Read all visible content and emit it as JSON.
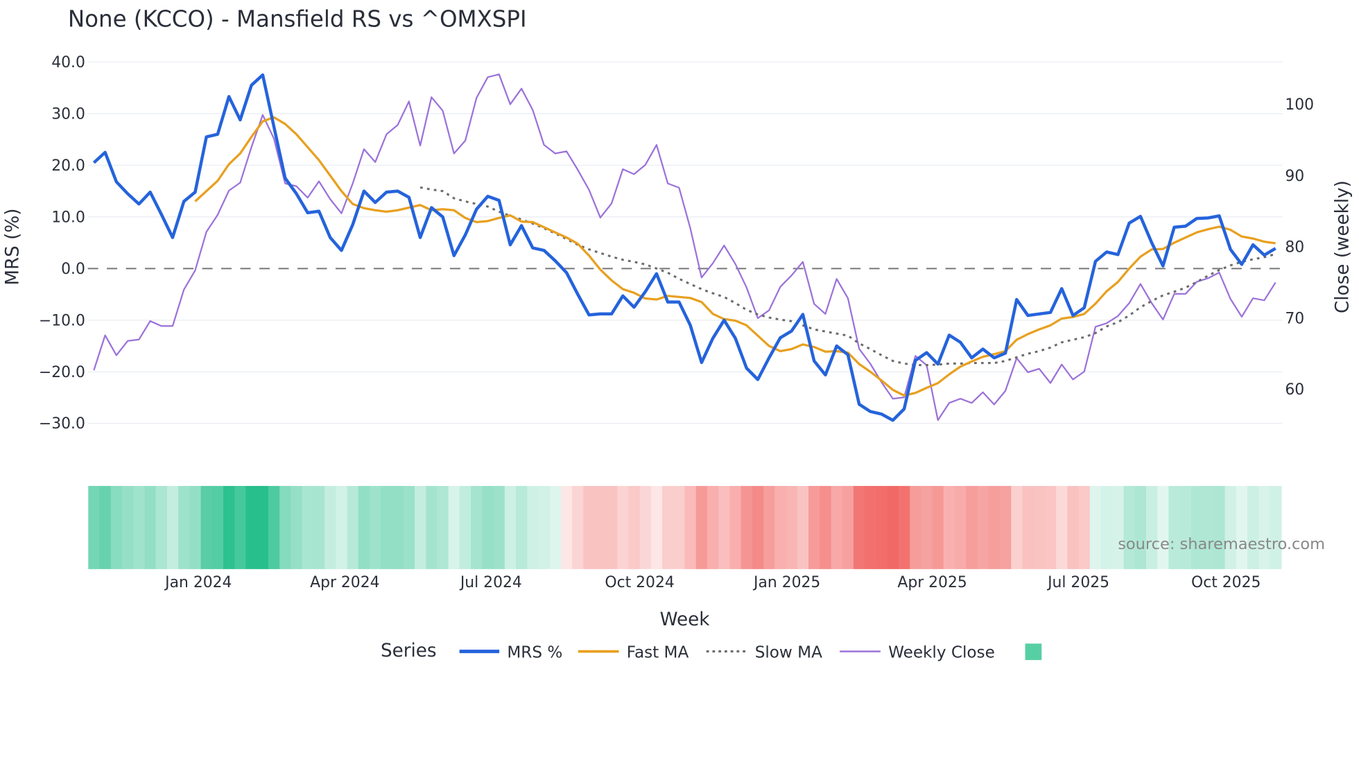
{
  "chart_data": {
    "type": "line",
    "title": "None (KCCO) - Mansfield RS vs ^OMXSPI",
    "xlabel": "Week",
    "ylabel": "MRS (%)",
    "y2label": "Close (weekly)",
    "ylim": [
      -37,
      42
    ],
    "y2lim": [
      52,
      111
    ],
    "yticks": [
      "40.0",
      "30.0",
      "20.0",
      "10.0",
      "0.0",
      "−10.0",
      "−20.0",
      "−30.0"
    ],
    "ytick_values": [
      40,
      30,
      20,
      10,
      0,
      -10,
      -20,
      -30
    ],
    "y2ticks": [
      "100",
      "90",
      "80",
      "70",
      "60"
    ],
    "y2tick_values": [
      100,
      90,
      80,
      70,
      60
    ],
    "xticks": [
      "Jan 2024",
      "Apr 2024",
      "Jul 2024",
      "Oct 2024",
      "Jan 2025",
      "Apr 2025",
      "Jul 2025",
      "Oct 2025"
    ],
    "xtick_weeks": [
      9.3,
      22.3,
      35.3,
      48.5,
      61.6,
      74.5,
      87.5,
      100.6
    ],
    "grid": true,
    "zero_line": true,
    "legend": {
      "title": "Series",
      "position": "bottom"
    },
    "series": [
      {
        "name": "MRS %",
        "axis": "left",
        "color": "#2563db",
        "style": "solid",
        "values": [
          20.5,
          22.5,
          16.8,
          14.5,
          12.5,
          14.8,
          10.5,
          6,
          13,
          14.8,
          25.5,
          26,
          33.3,
          28.8,
          35.5,
          37.5,
          27.5,
          17.5,
          14.5,
          10.8,
          11.1,
          6,
          3.5,
          8.5,
          15,
          12.8,
          14.8,
          15,
          13.8,
          6,
          11.8,
          10,
          2.5,
          6.5,
          11.5,
          14,
          13.2,
          4.6,
          8.3,
          4,
          3.5,
          1.5,
          -0.8,
          -5,
          -9,
          -8.8,
          -8.8,
          -5.3,
          -7.5,
          -4.5,
          -1,
          -6.5,
          -6.5,
          -11,
          -18.2,
          -13.5,
          -10,
          -13.5,
          -19.3,
          -21.5,
          -17.3,
          -13.4,
          -12.1,
          -8.9,
          -17.9,
          -20.6,
          -15,
          -16.7,
          -26.3,
          -27.7,
          -28.2,
          -29.4,
          -27.2,
          -17.8,
          -16.3,
          -18.5,
          -12.9,
          -14.3,
          -17.3,
          -15.6,
          -17.3,
          -16.4,
          -6,
          -9.1,
          -8.8,
          -8.5,
          -3.9,
          -9.1,
          -7.6,
          1.4,
          3.2,
          2.7,
          8.8,
          10.1,
          5,
          0.5,
          8,
          8.2,
          9.7,
          9.8,
          10.2,
          3.7,
          0.8,
          4.6,
          2.6,
          3.9
        ]
      },
      {
        "name": "Fast MA",
        "axis": "left",
        "color": "#e8a020",
        "style": "solid",
        "values": [
          13,
          15,
          17,
          20.2,
          22.3,
          25.5,
          28.5,
          29.3,
          28,
          26,
          23.5,
          21,
          18,
          15,
          12.5,
          11.7,
          11.3,
          11,
          11.3,
          11.8,
          12.3,
          11.3,
          11.5,
          11.3,
          9.8,
          9,
          9.2,
          9.8,
          10.3,
          9.1,
          9,
          8,
          7,
          6,
          4.8,
          2.5,
          -0.2,
          -2.3,
          -4,
          -4.7,
          -5.8,
          -6,
          -5.3,
          -5.5,
          -5.7,
          -6.5,
          -8.8,
          -9.8,
          -10.1,
          -11,
          -13,
          -15,
          -16,
          -15.6,
          -14.7,
          -15.2,
          -16.1,
          -16,
          -16.3,
          -18.5,
          -20,
          -21.7,
          -23.5,
          -24.6,
          -24.1,
          -23.1,
          -22.2,
          -20.5,
          -19,
          -18,
          -17.1,
          -16.6,
          -16,
          -13.8,
          -12.7,
          -11.8,
          -11,
          -9.7,
          -9.4,
          -8.8,
          -6.8,
          -4.4,
          -2.6,
          0,
          2.3,
          3.7,
          3.8,
          5,
          6,
          7,
          7.6,
          8.1,
          7.5,
          6.2,
          5.8,
          5.2,
          4.9
        ]
      },
      {
        "name": "Slow MA",
        "axis": "left",
        "color": "#6b6b6b",
        "style": "dotted",
        "values": [
          15.7,
          15.3,
          15,
          13.6,
          13,
          12.5,
          12,
          11,
          10.2,
          9.5,
          8.7,
          7.8,
          6.8,
          5.7,
          4.6,
          3.7,
          3,
          2.3,
          1.7,
          1.3,
          0.8,
          0,
          -0.8,
          -2,
          -3,
          -4,
          -4.8,
          -5.5,
          -6.7,
          -8,
          -8.9,
          -9.5,
          -9.9,
          -10.2,
          -11,
          -11.8,
          -12.2,
          -12.6,
          -13,
          -14.5,
          -15.6,
          -16.8,
          -17.9,
          -18.4,
          -18.7,
          -18.7,
          -18.6,
          -18.4,
          -18.4,
          -18.3,
          -18.3,
          -18.3,
          -17.9,
          -17.2,
          -16.5,
          -16,
          -15.3,
          -14.3,
          -13.8,
          -13.3,
          -12.5,
          -11.2,
          -10.4,
          -9.1,
          -7.5,
          -6.3,
          -5.2,
          -4.5,
          -3.7,
          -2.6,
          -1.4,
          -0.3,
          0.6,
          1.3,
          1.8,
          2.2,
          2.8
        ]
      },
      {
        "name": "Weekly Close",
        "axis": "right",
        "color": "#9b72d9",
        "style": "solid",
        "values": [
          62.7,
          67.6,
          64.8,
          66.8,
          67,
          69.6,
          68.9,
          68.9,
          74,
          76.7,
          82.1,
          84.5,
          87.9,
          89,
          94,
          98.5,
          95.2,
          88.9,
          88.5,
          86.9,
          89.2,
          86.7,
          84.7,
          88.9,
          93.7,
          91.9,
          95.8,
          97.1,
          100.4,
          94.2,
          101,
          99.1,
          93.1,
          94.9,
          100.9,
          103.8,
          104.2,
          100,
          102.2,
          99.2,
          94.3,
          93.1,
          93.4,
          90.8,
          88,
          84.1,
          86.1,
          90.9,
          90.2,
          91.5,
          94.3,
          88.9,
          88.3,
          82.6,
          75.7,
          77.7,
          80.2,
          77.6,
          74.3,
          70,
          71.1,
          74.4,
          76,
          77.9,
          72,
          70.6,
          75.5,
          72.8,
          65.7,
          63.6,
          61,
          58.7,
          58.9,
          64.7,
          63.4,
          55.7,
          58.1,
          58.7,
          58.1,
          59.6,
          57.9,
          59.8,
          64.4,
          62.4,
          62.9,
          60.9,
          63.5,
          61.4,
          62.5,
          68.8,
          69.3,
          70.3,
          72.1,
          74.8,
          72.1,
          69.8,
          73.4,
          73.4,
          75.1,
          75.6,
          76.4,
          72.7,
          70.2,
          72.8,
          72.5,
          75
        ]
      }
    ],
    "heatmap": {
      "name": "MRS heat strip",
      "positive_color": "#27bf8c",
      "negative_color": "#ef5350",
      "source_series": "MRS %"
    },
    "annotation": "source: sharemaestro.com"
  }
}
